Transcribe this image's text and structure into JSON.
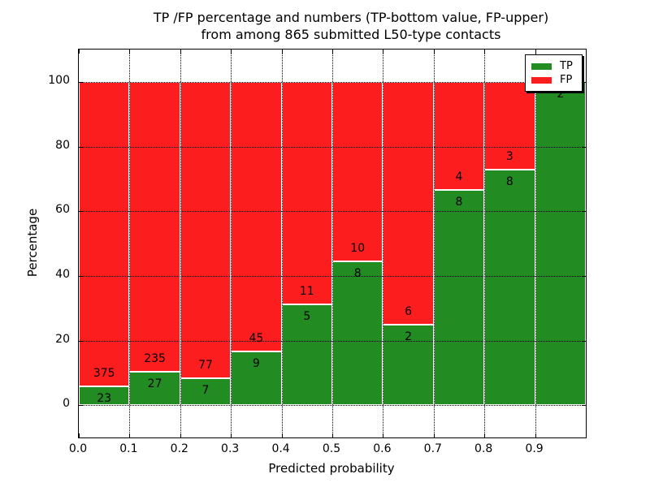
{
  "title": {
    "line1": "TP /FP percentage and numbers (TP-bottom value, FP-upper)",
    "line2": "from among 865 submitted L50-type contacts"
  },
  "axes": {
    "xlabel": "Predicted probability",
    "ylabel": "Percentage",
    "x_ticks": [
      "0.0",
      "0.1",
      "0.2",
      "0.3",
      "0.4",
      "0.5",
      "0.6",
      "0.7",
      "0.8",
      "0.9"
    ],
    "y_ticks": [
      "0",
      "20",
      "40",
      "60",
      "80",
      "100"
    ],
    "xlim": [
      0.0,
      1.0
    ],
    "ylim": [
      -10,
      110
    ],
    "grid": "dotted black, horizontal at y ticks and vertical at x ticks"
  },
  "legend": {
    "position": "upper right",
    "items": [
      {
        "label": "TP",
        "color": "#228B22"
      },
      {
        "label": "FP",
        "color": "#FC1E1E"
      }
    ]
  },
  "colors": {
    "tp_green": "#228B22",
    "fp_red": "#FC1E1E",
    "background": "#FFFFFF",
    "grid": "#000000"
  },
  "chart_data": {
    "type": "bar",
    "stacked": true,
    "normalized_to": 100,
    "title": "TP /FP percentage and numbers (TP-bottom value, FP-upper) from among 865 submitted L50-type contacts",
    "xlabel": "Predicted probability",
    "ylabel": "Percentage",
    "xlim": [
      0.0,
      1.0
    ],
    "ylim": [
      -10,
      110
    ],
    "total_contacts_shown_in_title": 865,
    "series": [
      {
        "name": "TP",
        "color": "#228B22",
        "values": [
          23,
          27,
          7,
          9,
          5,
          8,
          2,
          8,
          8,
          2
        ]
      },
      {
        "name": "FP",
        "color": "#FC1E1E",
        "values": [
          375,
          235,
          77,
          45,
          11,
          10,
          6,
          4,
          3,
          0
        ]
      }
    ],
    "bins": [
      {
        "range": [
          0.0,
          0.1
        ],
        "tp": 23,
        "fp": 375,
        "tp_pct": 5.78,
        "fp_pct": 94.22
      },
      {
        "range": [
          0.1,
          0.2
        ],
        "tp": 27,
        "fp": 235,
        "tp_pct": 10.31,
        "fp_pct": 89.69
      },
      {
        "range": [
          0.2,
          0.3
        ],
        "tp": 7,
        "fp": 77,
        "tp_pct": 8.33,
        "fp_pct": 91.67
      },
      {
        "range": [
          0.3,
          0.4
        ],
        "tp": 9,
        "fp": 45,
        "tp_pct": 16.67,
        "fp_pct": 83.33
      },
      {
        "range": [
          0.4,
          0.5
        ],
        "tp": 5,
        "fp": 11,
        "tp_pct": 31.25,
        "fp_pct": 68.75
      },
      {
        "range": [
          0.5,
          0.6
        ],
        "tp": 8,
        "fp": 10,
        "tp_pct": 44.44,
        "fp_pct": 55.56
      },
      {
        "range": [
          0.6,
          0.7
        ],
        "tp": 2,
        "fp": 6,
        "tp_pct": 25.0,
        "fp_pct": 75.0
      },
      {
        "range": [
          0.7,
          0.8
        ],
        "tp": 8,
        "fp": 4,
        "tp_pct": 66.67,
        "fp_pct": 33.33
      },
      {
        "range": [
          0.8,
          0.9
        ],
        "tp": 8,
        "fp": 3,
        "tp_pct": 72.73,
        "fp_pct": 27.27
      },
      {
        "range": [
          0.9,
          1.0
        ],
        "tp": 2,
        "fp": 0,
        "tp_pct": 100.0,
        "fp_pct": 0.0
      }
    ]
  }
}
